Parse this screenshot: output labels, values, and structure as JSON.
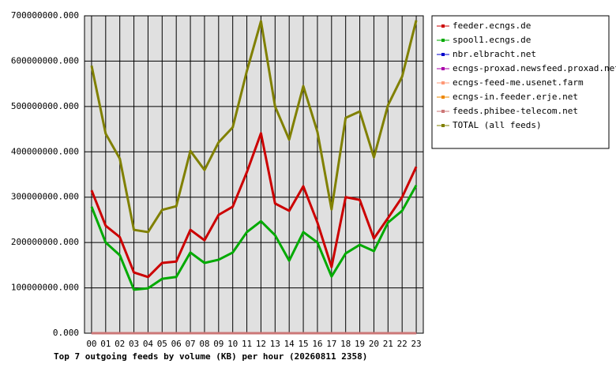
{
  "chart_data": {
    "type": "line",
    "title": "Top 7 outgoing feeds by volume (KB) per hour (20260811 2358)",
    "categories": [
      "00",
      "01",
      "02",
      "03",
      "04",
      "05",
      "06",
      "07",
      "08",
      "09",
      "10",
      "11",
      "12",
      "13",
      "14",
      "15",
      "16",
      "17",
      "18",
      "19",
      "20",
      "21",
      "22",
      "23"
    ],
    "series": [
      {
        "name": "feeder.ecngs.de",
        "color": "#cc0000",
        "values": [
          315000000,
          237000000,
          212000000,
          134000000,
          124000000,
          155000000,
          158000000,
          228000000,
          205000000,
          261000000,
          279000000,
          355000000,
          441000000,
          286000000,
          270000000,
          324000000,
          244000000,
          146000000,
          300000000,
          294000000,
          209000000,
          254000000,
          300000000,
          367000000
        ]
      },
      {
        "name": "spool1.ecngs.de",
        "color": "#00aa00",
        "values": [
          279000000,
          200000000,
          172000000,
          96000000,
          99000000,
          120000000,
          124000000,
          178000000,
          155000000,
          162000000,
          178000000,
          223000000,
          247000000,
          216000000,
          160000000,
          223000000,
          200000000,
          125000000,
          176000000,
          195000000,
          181000000,
          244000000,
          270000000,
          326000000
        ]
      },
      {
        "name": "nbr.elbracht.net",
        "color": "#0000cc",
        "values": [
          0,
          0,
          0,
          0,
          0,
          0,
          0,
          0,
          0,
          0,
          0,
          0,
          0,
          0,
          0,
          0,
          0,
          0,
          0,
          0,
          0,
          0,
          0,
          0
        ]
      },
      {
        "name": "ecngs-proxad.newsfeed.proxad.net",
        "color": "#aa00aa",
        "values": [
          0,
          0,
          0,
          0,
          0,
          0,
          0,
          0,
          0,
          0,
          0,
          0,
          0,
          0,
          0,
          0,
          0,
          0,
          0,
          0,
          0,
          0,
          0,
          0
        ]
      },
      {
        "name": "ecngs-feed-me.usenet.farm",
        "color": "#ff9977",
        "values": [
          0,
          0,
          0,
          0,
          0,
          0,
          0,
          0,
          0,
          0,
          0,
          0,
          0,
          0,
          0,
          0,
          0,
          0,
          0,
          0,
          0,
          0,
          0,
          0
        ]
      },
      {
        "name": "ecngs-in.feeder.erje.net",
        "color": "#ee8800",
        "values": [
          0,
          0,
          0,
          0,
          0,
          0,
          0,
          0,
          0,
          0,
          0,
          0,
          0,
          0,
          0,
          0,
          0,
          0,
          0,
          0,
          0,
          0,
          0,
          0
        ]
      },
      {
        "name": "feeds.phibee-telecom.net",
        "color": "#cc7777",
        "values": [
          0,
          0,
          0,
          0,
          0,
          0,
          0,
          0,
          0,
          0,
          0,
          0,
          0,
          0,
          0,
          0,
          0,
          0,
          0,
          0,
          0,
          0,
          0,
          0
        ]
      },
      {
        "name": "TOTAL (all feeds)",
        "color": "#808000",
        "values": [
          590000000,
          440000000,
          385000000,
          228000000,
          223000000,
          272000000,
          280000000,
          402000000,
          360000000,
          421000000,
          454000000,
          578000000,
          688000000,
          500000000,
          427000000,
          545000000,
          444000000,
          273000000,
          475000000,
          489000000,
          388000000,
          503000000,
          566000000,
          690000000
        ]
      }
    ],
    "ylim": [
      0,
      700000000
    ],
    "yticks": [
      {
        "value": 0,
        "label": "0.000"
      },
      {
        "value": 100000000,
        "label": "100000000.000"
      },
      {
        "value": 200000000,
        "label": "200000000.000"
      },
      {
        "value": 300000000,
        "label": "300000000.000"
      },
      {
        "value": 400000000,
        "label": "400000000.000"
      },
      {
        "value": 500000000,
        "label": "500000000.000"
      },
      {
        "value": 600000000,
        "label": "600000000.000"
      },
      {
        "value": 700000000,
        "label": "700000000.000"
      }
    ],
    "grid": true,
    "legend": "right"
  }
}
